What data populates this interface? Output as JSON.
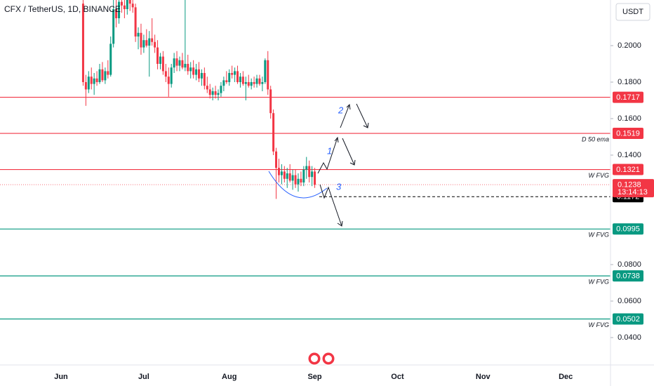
{
  "chart_data": {
    "type": "candlestick",
    "title": "CFX / TetherUS, 1D, BINANCE",
    "currency": "USDT",
    "up_color": "#089981",
    "down_color": "#f23645",
    "categories": [
      "Jun",
      null,
      null,
      null,
      null,
      null,
      null,
      null,
      null,
      null,
      null,
      null,
      null,
      null,
      null,
      null,
      null,
      null,
      null,
      null,
      null,
      null,
      null,
      null,
      null,
      null,
      null,
      null,
      null,
      null,
      "Jul",
      null,
      null,
      null,
      null,
      null,
      null,
      null,
      null,
      null,
      null,
      null,
      null,
      null,
      null,
      null,
      null,
      null,
      null,
      null,
      null,
      null,
      null,
      null,
      null,
      null,
      null,
      null,
      null,
      null,
      null,
      "Aug",
      null,
      null,
      null,
      null,
      null,
      null,
      null,
      null,
      null,
      null,
      null,
      null,
      null,
      null,
      null,
      null,
      null,
      null,
      null,
      null,
      null,
      null,
      null,
      null,
      null,
      null,
      null,
      null,
      null,
      null,
      "Sep",
      null,
      null,
      null,
      null,
      null,
      null,
      null,
      null,
      null,
      null,
      null,
      null,
      null,
      null,
      null,
      null,
      null,
      null,
      null,
      null,
      null,
      null,
      null,
      null,
      null,
      null,
      null,
      null,
      null,
      "Oct",
      null,
      null,
      null,
      null,
      null,
      null,
      null,
      null,
      null,
      null,
      null,
      null,
      null,
      null,
      null,
      null,
      null,
      null,
      null,
      null,
      null,
      null,
      null,
      null,
      null,
      null,
      null,
      null,
      null,
      null,
      "Nov",
      null,
      null,
      null,
      null,
      null,
      null,
      null,
      null,
      null,
      null,
      null,
      null,
      null,
      null,
      null,
      null,
      null,
      null,
      null,
      null,
      null,
      null,
      null,
      null,
      null,
      null,
      null,
      null,
      null,
      "Dec"
    ],
    "values": [
      null,
      null,
      null,
      null,
      null,
      null,
      null,
      null,
      [
        0.223,
        0.2254,
        0.178,
        0.18
      ],
      [
        0.18,
        0.184,
        0.167,
        0.176
      ],
      [
        0.176,
        0.186,
        0.174,
        0.183
      ],
      [
        0.183,
        0.188,
        0.176,
        0.179
      ],
      [
        0.179,
        0.185,
        0.173,
        0.182
      ],
      [
        0.182,
        0.186,
        0.178,
        0.18
      ],
      [
        0.18,
        0.19,
        0.179,
        0.187
      ],
      [
        0.187,
        0.191,
        0.18,
        0.181
      ],
      [
        0.181,
        0.188,
        0.179,
        0.186
      ],
      [
        0.186,
        0.192,
        0.182,
        0.184
      ],
      [
        0.184,
        0.205,
        0.183,
        0.201
      ],
      [
        0.201,
        0.2254,
        0.199,
        0.22
      ],
      [
        0.22,
        0.2254,
        0.21,
        0.215
      ],
      [
        0.215,
        0.2254,
        0.212,
        0.224
      ],
      [
        0.224,
        0.2254,
        0.218,
        0.222
      ],
      [
        0.222,
        0.2254,
        0.215,
        0.22
      ],
      [
        0.22,
        0.2254,
        0.217,
        0.225
      ],
      [
        0.225,
        0.2254,
        0.219,
        0.223
      ],
      [
        0.223,
        0.2254,
        0.218,
        0.221
      ],
      [
        0.221,
        0.223,
        0.202,
        0.205
      ],
      [
        0.205,
        0.21,
        0.198,
        0.207
      ],
      [
        0.207,
        0.212,
        0.195,
        0.199
      ],
      [
        0.199,
        0.206,
        0.196,
        0.203
      ],
      [
        0.203,
        0.209,
        0.199,
        0.2
      ],
      [
        0.2,
        0.208,
        0.183,
        0.204
      ],
      [
        0.204,
        0.215,
        0.2,
        0.202
      ],
      [
        0.202,
        0.206,
        0.196,
        0.199
      ],
      [
        0.199,
        0.203,
        0.187,
        0.19
      ],
      [
        0.19,
        0.196,
        0.187,
        0.194
      ],
      [
        0.194,
        0.197,
        0.184,
        0.186
      ],
      [
        0.186,
        0.19,
        0.18,
        0.183
      ],
      [
        0.183,
        0.188,
        0.172,
        0.179
      ],
      [
        0.179,
        0.19,
        0.177,
        0.188
      ],
      [
        0.188,
        0.196,
        0.185,
        0.193
      ],
      [
        0.193,
        0.197,
        0.186,
        0.189
      ],
      [
        0.189,
        0.194,
        0.186,
        0.192
      ],
      [
        0.192,
        0.196,
        0.187,
        0.188
      ],
      [
        0.188,
        0.2254,
        0.186,
        0.19
      ],
      [
        0.19,
        0.195,
        0.184,
        0.186
      ],
      [
        0.186,
        0.191,
        0.182,
        0.188
      ],
      [
        0.188,
        0.192,
        0.182,
        0.184
      ],
      [
        0.184,
        0.19,
        0.181,
        0.187
      ],
      [
        0.187,
        0.191,
        0.18,
        0.182
      ],
      [
        0.182,
        0.187,
        0.178,
        0.185
      ],
      [
        0.185,
        0.188,
        0.176,
        0.178
      ],
      [
        0.178,
        0.183,
        0.174,
        0.176
      ],
      [
        0.176,
        0.179,
        0.171,
        0.173
      ],
      [
        0.173,
        0.177,
        0.17,
        0.175
      ],
      [
        0.175,
        0.178,
        0.171,
        0.173
      ],
      [
        0.173,
        0.176,
        0.17,
        0.174
      ],
      [
        0.174,
        0.18,
        0.172,
        0.178
      ],
      [
        0.178,
        0.183,
        0.175,
        0.181
      ],
      [
        0.181,
        0.186,
        0.179,
        0.18
      ],
      [
        0.18,
        0.187,
        0.178,
        0.185
      ],
      [
        0.185,
        0.189,
        0.182,
        0.184
      ],
      [
        0.184,
        0.188,
        0.18,
        0.186
      ],
      [
        0.186,
        0.189,
        0.179,
        0.18
      ],
      [
        0.18,
        0.185,
        0.177,
        0.183
      ],
      [
        0.183,
        0.186,
        0.178,
        0.179
      ],
      [
        0.179,
        0.183,
        0.17,
        0.18
      ],
      [
        0.18,
        0.184,
        0.177,
        0.178
      ],
      [
        0.178,
        0.182,
        0.176,
        0.18
      ],
      [
        0.18,
        0.183,
        0.177,
        0.179
      ],
      [
        0.179,
        0.184,
        0.177,
        0.182
      ],
      [
        0.182,
        0.184,
        0.178,
        0.179
      ],
      [
        0.179,
        0.183,
        0.175,
        0.18
      ],
      [
        0.18,
        0.193,
        0.179,
        0.192
      ],
      [
        0.192,
        0.197,
        0.173,
        0.176
      ],
      [
        0.176,
        0.178,
        0.16,
        0.163
      ],
      [
        0.163,
        0.165,
        0.14,
        0.142
      ],
      [
        0.142,
        0.144,
        0.116,
        0.133
      ],
      [
        0.133,
        0.138,
        0.125,
        0.129
      ],
      [
        0.129,
        0.135,
        0.124,
        0.131
      ],
      [
        0.131,
        0.134,
        0.125,
        0.127
      ],
      [
        0.127,
        0.133,
        0.122,
        0.13
      ],
      [
        0.13,
        0.135,
        0.125,
        0.126
      ],
      [
        0.126,
        0.132,
        0.121,
        0.129
      ],
      [
        0.129,
        0.132,
        0.122,
        0.124
      ],
      [
        0.124,
        0.13,
        0.12,
        0.127
      ],
      [
        0.127,
        0.131,
        0.123,
        0.125
      ],
      [
        0.125,
        0.134,
        0.123,
        0.132
      ],
      [
        0.132,
        0.139,
        0.127,
        0.134
      ],
      [
        0.134,
        0.137,
        0.125,
        0.128
      ],
      [
        0.128,
        0.134,
        0.123,
        0.131
      ],
      [
        0.131,
        0.133,
        0.122,
        0.1238
      ],
      null,
      null,
      null,
      null,
      null,
      null,
      null,
      null,
      null,
      null,
      null,
      null,
      null,
      null,
      null,
      null,
      null,
      null,
      null,
      null,
      null,
      null,
      null,
      null,
      null,
      null,
      null,
      null,
      null,
      null,
      null,
      null,
      null,
      null,
      null,
      null,
      null,
      null,
      null,
      null,
      null,
      null,
      null,
      null,
      null,
      null,
      null,
      null,
      null,
      null,
      null,
      null,
      null,
      null,
      null,
      null,
      null,
      null,
      null,
      null,
      null,
      null,
      null,
      null,
      null,
      null,
      null,
      null,
      null,
      null,
      null,
      null,
      null,
      null,
      null,
      null,
      null,
      null,
      null,
      null,
      null,
      null,
      null,
      null,
      null,
      null,
      null,
      null,
      null,
      null,
      null
    ],
    "ylim": [
      0.025,
      0.225
    ],
    "yticks": [
      {
        "value": 0.2,
        "label": "0.2000"
      },
      {
        "value": 0.18,
        "label": "0.1800"
      },
      {
        "value": 0.16,
        "label": "0.1600"
      },
      {
        "value": 0.14,
        "label": "0.1400"
      },
      {
        "value": 0.08,
        "label": "0.0800"
      },
      {
        "value": 0.06,
        "label": "0.0600"
      },
      {
        "value": 0.04,
        "label": "0.0400"
      }
    ],
    "levels": [
      {
        "value": 0.1717,
        "color": "#f23645"
      },
      {
        "value": 0.1519,
        "color": "#f23645",
        "annotation": "D 50 ema"
      },
      {
        "value": 0.1321,
        "color": "#f23645",
        "annotation": "W FVG"
      },
      {
        "value": 0.0995,
        "color": "#089981",
        "annotation": "W FVG"
      },
      {
        "value": 0.0738,
        "color": "#089981",
        "annotation": "W FVG"
      },
      {
        "value": 0.0502,
        "color": "#089981",
        "annotation": "W FVG"
      }
    ],
    "dashed_level": {
      "value": 0.1172,
      "color": "#000000"
    },
    "last_price": {
      "value": 0.1238,
      "countdown": "13:14:13",
      "color": "#f23645"
    },
    "drawing_labels": [
      "1",
      "2",
      "3"
    ]
  }
}
